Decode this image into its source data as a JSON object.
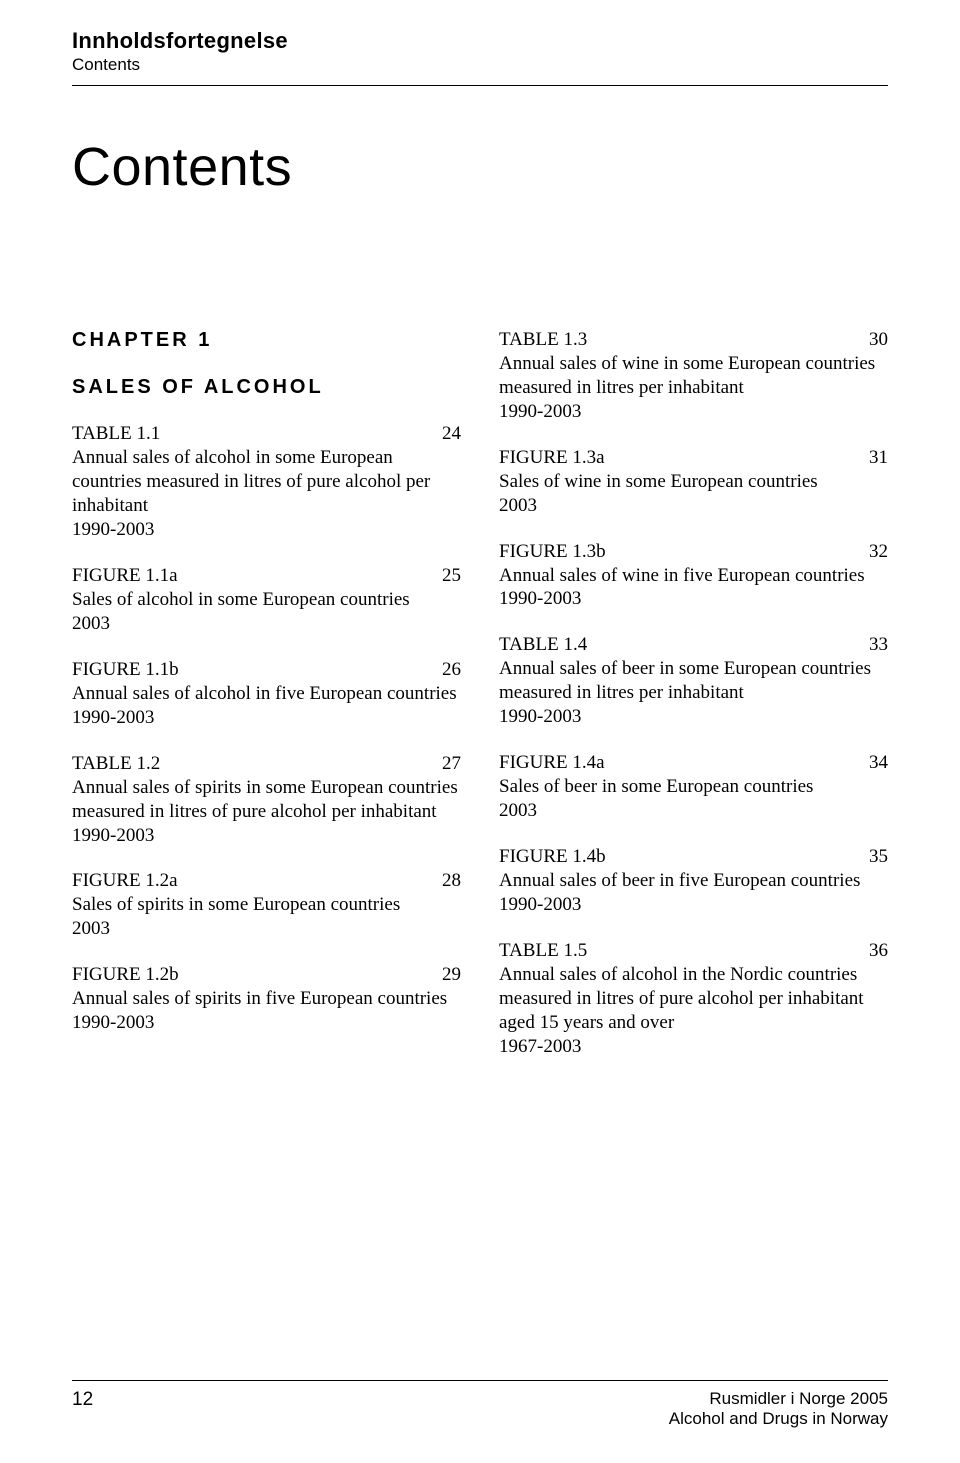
{
  "header": {
    "title": "Innholdsfortegnelse",
    "subtitle": "Contents"
  },
  "page_title": "Contents",
  "chapter": {
    "label": "CHAPTER 1",
    "section": "SALES OF ALCOHOL"
  },
  "left_entries": [
    {
      "label": "TABLE 1.1",
      "page": "24",
      "desc": "Annual sales of alcohol in some European countries measured in litres of pure alcohol per inhabitant",
      "range": "1990-2003"
    },
    {
      "label": "FIGURE 1.1a",
      "page": "25",
      "desc": "Sales of alcohol in some European countries",
      "range": "2003"
    },
    {
      "label": "FIGURE 1.1b",
      "page": "26",
      "desc": "Annual sales of alcohol in five European countries",
      "range": "1990-2003"
    },
    {
      "label": "TABLE 1.2",
      "page": "27",
      "desc": "Annual sales of spirits in some European countries measured in litres of pure alcohol per inhabitant",
      "range": "1990-2003"
    },
    {
      "label": "FIGURE 1.2a",
      "page": "28",
      "desc": "Sales of spirits in some European countries",
      "range": "2003"
    },
    {
      "label": "FIGURE 1.2b",
      "page": "29",
      "desc": "Annual sales of spirits in five European countries",
      "range": "1990-2003"
    }
  ],
  "right_entries": [
    {
      "label": "TABLE 1.3",
      "page": "30",
      "desc": "Annual sales of wine in some European countries measured in litres per inhabitant",
      "range": "1990-2003"
    },
    {
      "label": "FIGURE 1.3a",
      "page": "31",
      "desc": "Sales of wine in some European countries",
      "range": "2003"
    },
    {
      "label": "FIGURE 1.3b",
      "page": "32",
      "desc": "Annual sales of wine in five European countries",
      "range": "1990-2003"
    },
    {
      "label": "TABLE 1.4",
      "page": "33",
      "desc": "Annual sales of beer in some European countries measured in litres per inhabitant",
      "range": "1990-2003"
    },
    {
      "label": "FIGURE 1.4a",
      "page": "34",
      "desc": "Sales of beer in some European countries",
      "range": "2003"
    },
    {
      "label": "FIGURE 1.4b",
      "page": "35",
      "desc": "Annual sales of beer in five European countries",
      "range": "1990-2003"
    },
    {
      "label": "TABLE 1.5",
      "page": "36",
      "desc": "Annual sales of alcohol in the Nordic countries measured in litres of pure alcohol per inhabitant aged 15 years and over",
      "range": "1967-2003"
    }
  ],
  "footer": {
    "page_number": "12",
    "right_line1": "Rusmidler i Norge 2005",
    "right_line2": "Alcohol and Drugs in Norway"
  }
}
